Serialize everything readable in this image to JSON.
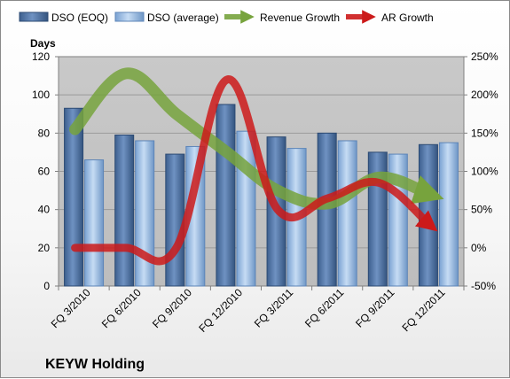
{
  "chart_data": {
    "type": "bar",
    "title": "",
    "company": "KEYW Holding",
    "ylabel": "Days",
    "ylim": [
      0,
      120
    ],
    "y_ticks": [
      0,
      20,
      40,
      60,
      80,
      100,
      120
    ],
    "y2lim": [
      -50,
      250
    ],
    "y2_ticks": [
      -50,
      0,
      50,
      100,
      150,
      200,
      250
    ],
    "y2_unit": "%",
    "categories": [
      "FQ 3/2010",
      "FQ 6/2010",
      "FQ 9/2010",
      "FQ 12/2010",
      "FQ 3/2011",
      "FQ 6/2011",
      "FQ 9/2011",
      "FQ 12/2011"
    ],
    "series": [
      {
        "name": "DSO (EOQ)",
        "type": "bar",
        "axis": "left",
        "values": [
          93,
          79,
          69,
          95,
          78,
          80,
          70,
          74
        ],
        "color": "#4a6d9c"
      },
      {
        "name": "DSO (average)",
        "type": "bar",
        "axis": "left",
        "values": [
          66,
          76,
          73,
          81,
          72,
          76,
          69,
          75
        ],
        "color": "#8fb4e0"
      },
      {
        "name": "Revenue Growth",
        "type": "line",
        "axis": "right",
        "values": [
          155,
          228,
          175,
          125,
          75,
          58,
          92,
          70
        ],
        "color": "#77a33d"
      },
      {
        "name": "AR Growth",
        "type": "line",
        "axis": "right",
        "values": [
          0,
          0,
          0,
          220,
          50,
          65,
          85,
          30
        ],
        "color": "#cc1a1a"
      }
    ],
    "grid": true,
    "legend": "top"
  }
}
